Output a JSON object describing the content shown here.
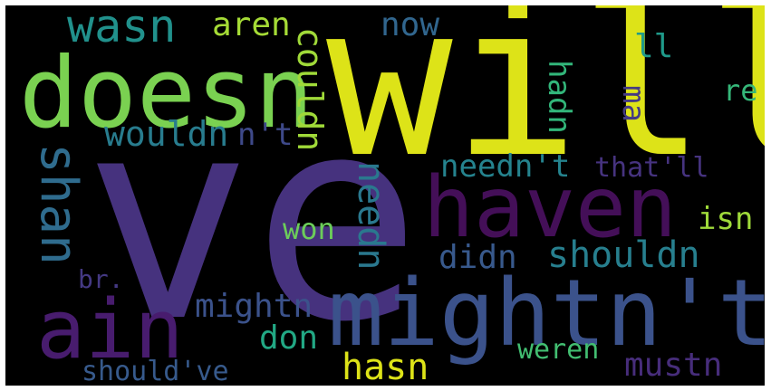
{
  "wordcloud": {
    "background": "#000000",
    "words": [
      {
        "text": "will",
        "color": "#dde318"
      },
      {
        "text": "ve",
        "color": "#46327e"
      },
      {
        "text": "doesn",
        "color": "#7ad151"
      },
      {
        "text": "haven",
        "color": "#440f58"
      },
      {
        "text": "mightn't",
        "color": "#3b528b"
      },
      {
        "text": "ain",
        "color": "#481c6e"
      },
      {
        "text": "wasn",
        "color": "#21918c"
      },
      {
        "text": "shan",
        "color": "#2f6c8e"
      },
      {
        "text": "aren",
        "color": "#a5db36"
      },
      {
        "text": "now",
        "color": "#31668e"
      },
      {
        "text": "couldn",
        "color": "#a0da39"
      },
      {
        "text": "hadn",
        "color": "#32b67a"
      },
      {
        "text": "ma",
        "color": "#443a83"
      },
      {
        "text": "ll",
        "color": "#1f9a8a"
      },
      {
        "text": "re",
        "color": "#35b779"
      },
      {
        "text": "wouldn",
        "color": "#287c8e"
      },
      {
        "text": "n't",
        "color": "#3e4989"
      },
      {
        "text": "needn't",
        "color": "#25838e"
      },
      {
        "text": "that'll",
        "color": "#46337f"
      },
      {
        "text": "isn",
        "color": "#9fda3a"
      },
      {
        "text": "won",
        "color": "#6ccd5a"
      },
      {
        "text": "needn",
        "color": "#2a788e"
      },
      {
        "text": "didn",
        "color": "#38598c"
      },
      {
        "text": "shouldn",
        "color": "#277f8e"
      },
      {
        "text": "br.",
        "color": "#443983"
      },
      {
        "text": "mightn",
        "color": "#3b528b"
      },
      {
        "text": "don",
        "color": "#22a884"
      },
      {
        "text": "weren",
        "color": "#42be71"
      },
      {
        "text": "hasn",
        "color": "#dde318"
      },
      {
        "text": "mustn",
        "color": "#472d7b"
      },
      {
        "text": "should've",
        "color": "#375a8c"
      }
    ]
  }
}
